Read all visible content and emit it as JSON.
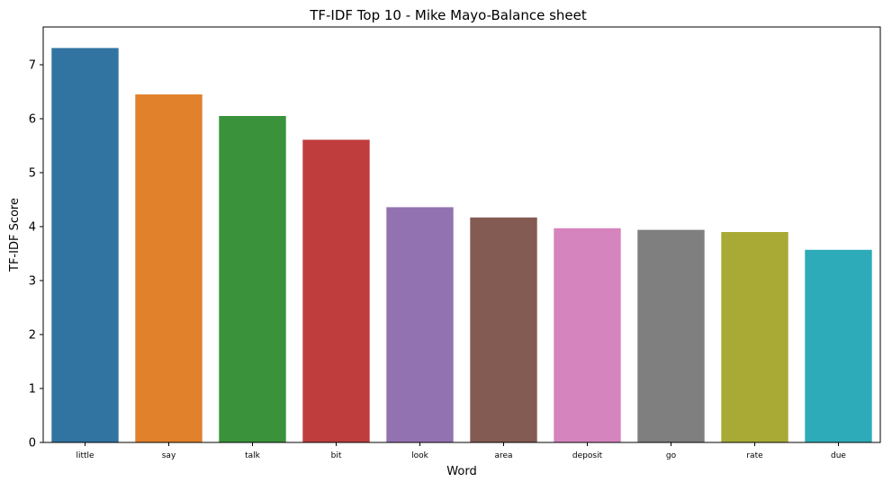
{
  "chart_data": {
    "type": "bar",
    "title": "TF-IDF Top 10 - Mike Mayo-Balance sheet",
    "xlabel": "Word",
    "ylabel": "TF-IDF Score",
    "categories": [
      "little",
      "say",
      "talk",
      "bit",
      "look",
      "area",
      "deposit",
      "go",
      "rate",
      "due"
    ],
    "values": [
      7.31,
      6.45,
      6.05,
      5.61,
      4.36,
      4.17,
      3.97,
      3.94,
      3.9,
      3.57
    ],
    "colors": [
      "#3274a1",
      "#e1812c",
      "#3a923a",
      "#c03d3e",
      "#9372b2",
      "#845b53",
      "#d684bd",
      "#7f7f7f",
      "#a9aa35",
      "#2eabb8"
    ],
    "ylim": [
      0,
      7.7
    ],
    "yticks": [
      0,
      1,
      2,
      3,
      4,
      5,
      6,
      7
    ],
    "grid": false,
    "legend": "none"
  }
}
